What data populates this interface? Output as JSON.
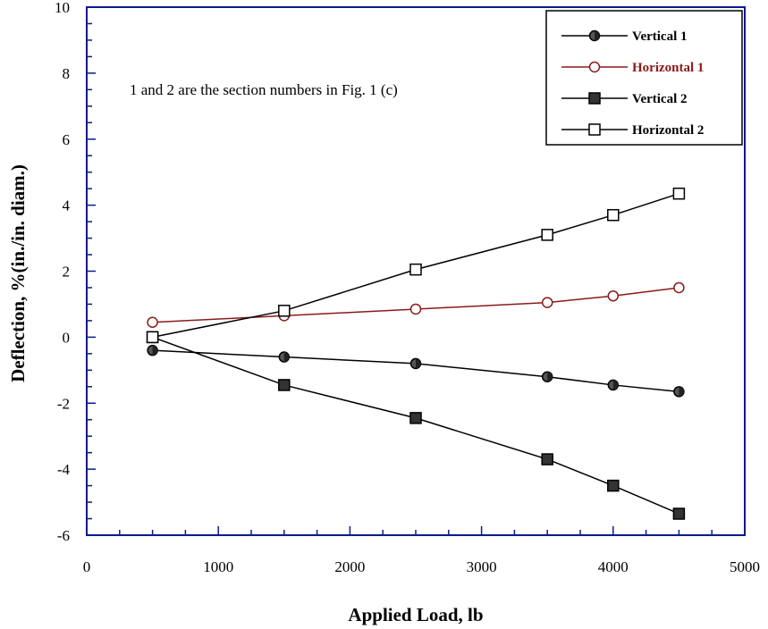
{
  "chart_data": {
    "type": "line",
    "title": "",
    "xlabel": "Applied Load, lb",
    "ylabel": "Deflection, %(in./in. diam.)",
    "xlim": [
      0,
      5000
    ],
    "ylim": [
      -6,
      10
    ],
    "xticks": [
      0,
      1000,
      2000,
      3000,
      4000,
      5000
    ],
    "yticks": [
      -6,
      -4,
      -2,
      0,
      2,
      4,
      6,
      8,
      10
    ],
    "xtick_labels": [
      "0",
      "1000",
      "2000",
      "3000",
      "4000",
      "5000"
    ],
    "ytick_labels": [
      "-6",
      "-4",
      "-2",
      "0",
      "2",
      "4",
      "6",
      "8",
      "10"
    ],
    "grid": false,
    "legend_position": "top-right",
    "annotation": "1 and 2 are the section numbers in Fig. 1 (c)",
    "series": [
      {
        "name": "Vertical 1",
        "color": "#000000",
        "marker": "circle-filled",
        "x": [
          500,
          1500,
          2500,
          3500,
          4000,
          4500
        ],
        "y": [
          -0.4,
          -0.6,
          -0.8,
          -1.2,
          -1.45,
          -1.65
        ]
      },
      {
        "name": "Horizontal 1",
        "color": "#8b1a1a",
        "marker": "circle-open",
        "x": [
          500,
          1500,
          2500,
          3500,
          4000,
          4500
        ],
        "y": [
          0.45,
          0.65,
          0.85,
          1.05,
          1.25,
          1.5
        ]
      },
      {
        "name": "Vertical 2",
        "color": "#000000",
        "marker": "square-filled",
        "x": [
          500,
          1500,
          2500,
          3500,
          4000,
          4500
        ],
        "y": [
          0.0,
          -1.45,
          -2.45,
          -3.7,
          -4.5,
          -5.35
        ]
      },
      {
        "name": "Horizontal 2",
        "color": "#000000",
        "marker": "square-open",
        "x": [
          500,
          1500,
          2500,
          3500,
          4000,
          4500
        ],
        "y": [
          0.0,
          0.8,
          2.05,
          3.1,
          3.7,
          4.35
        ]
      }
    ]
  }
}
